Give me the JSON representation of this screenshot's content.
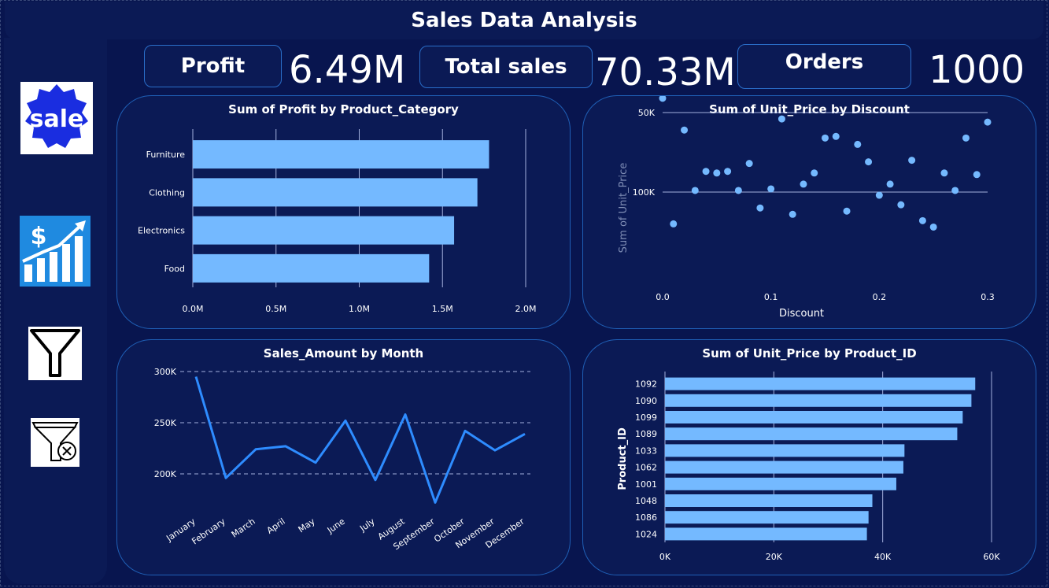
{
  "header": {
    "title": "Sales Data Analysis"
  },
  "sidebar": {
    "icons": [
      {
        "name": "sale-badge-icon",
        "text": "sale"
      },
      {
        "name": "sales-growth-icon",
        "text": "$"
      },
      {
        "name": "filter-icon"
      },
      {
        "name": "clear-filter-icon"
      }
    ]
  },
  "kpis": [
    {
      "label": "Profit",
      "value": "6.49M"
    },
    {
      "label": "Total sales",
      "value": "70.33M"
    },
    {
      "label": "Orders",
      "value": "1000"
    }
  ],
  "colors": {
    "bar": "#74b9ff",
    "line": "#2e8cff",
    "point": "#74b9ff",
    "panel": "#0b1a55",
    "background": "#08154f"
  },
  "chart_data": [
    {
      "type": "bar",
      "orientation": "horizontal",
      "title": "Sum of Profit by Product_Category",
      "categories": [
        "Furniture",
        "Clothing",
        "Electronics",
        "Food"
      ],
      "values": [
        1.78,
        1.71,
        1.57,
        1.42
      ],
      "value_unit": "M",
      "xlim": [
        0,
        2
      ],
      "xticks": [
        "0.0M",
        "0.5M",
        "1.0M",
        "1.5M",
        "2.0M"
      ],
      "grid": "vertical"
    },
    {
      "type": "scatter",
      "title": "Sum of Unit_Price by Discount",
      "xlabel": "Discount",
      "ylabel": "Sum of Unit_Price",
      "xlim": [
        0,
        0.3
      ],
      "ylim": [
        41,
        130
      ],
      "xticks": [
        "0.0",
        "0.1",
        "0.2",
        "0.3"
      ],
      "yticks": [
        {
          "value": 50,
          "label": "50K"
        },
        {
          "value": 100,
          "label": "100K"
        }
      ],
      "points": [
        [
          0.0,
          41
        ],
        [
          0.01,
          120
        ],
        [
          0.02,
          61
        ],
        [
          0.03,
          99
        ],
        [
          0.04,
          87
        ],
        [
          0.05,
          88
        ],
        [
          0.06,
          87
        ],
        [
          0.07,
          99
        ],
        [
          0.08,
          82
        ],
        [
          0.09,
          110
        ],
        [
          0.1,
          98
        ],
        [
          0.11,
          54
        ],
        [
          0.12,
          114
        ],
        [
          0.13,
          95
        ],
        [
          0.14,
          88
        ],
        [
          0.15,
          66
        ],
        [
          0.16,
          65
        ],
        [
          0.17,
          112
        ],
        [
          0.18,
          70
        ],
        [
          0.19,
          81
        ],
        [
          0.2,
          102
        ],
        [
          0.21,
          95
        ],
        [
          0.22,
          108
        ],
        [
          0.23,
          80
        ],
        [
          0.24,
          118
        ],
        [
          0.25,
          122
        ],
        [
          0.26,
          88
        ],
        [
          0.27,
          99
        ],
        [
          0.28,
          66
        ],
        [
          0.29,
          89
        ],
        [
          0.3,
          56
        ]
      ]
    },
    {
      "type": "line",
      "title": "Sales_Amount by Month",
      "categories": [
        "January",
        "February",
        "March",
        "April",
        "May",
        "June",
        "July",
        "August",
        "September",
        "October",
        "November",
        "December"
      ],
      "values": [
        295,
        196,
        224,
        227,
        211,
        252,
        194,
        258,
        172,
        242,
        223,
        239
      ],
      "value_unit": "K",
      "ylim": [
        170,
        300
      ],
      "yticks": [
        {
          "value": 200,
          "label": "200K"
        },
        {
          "value": 250,
          "label": "250K"
        },
        {
          "value": 300,
          "label": "300K"
        }
      ],
      "grid": "dashed"
    },
    {
      "type": "bar",
      "orientation": "horizontal",
      "title": "Sum of Unit_Price by Product_ID",
      "ylabel": "Product_ID",
      "categories": [
        "1092",
        "1090",
        "1099",
        "1089",
        "1033",
        "1062",
        "1001",
        "1048",
        "1086",
        "1024"
      ],
      "values": [
        57,
        56.3,
        54.7,
        53.7,
        44,
        43.8,
        42.5,
        38.1,
        37.4,
        37.1
      ],
      "value_unit": "K",
      "xlim": [
        0,
        60
      ],
      "xticks": [
        "0K",
        "20K",
        "40K",
        "60K"
      ],
      "grid": "vertical"
    }
  ]
}
